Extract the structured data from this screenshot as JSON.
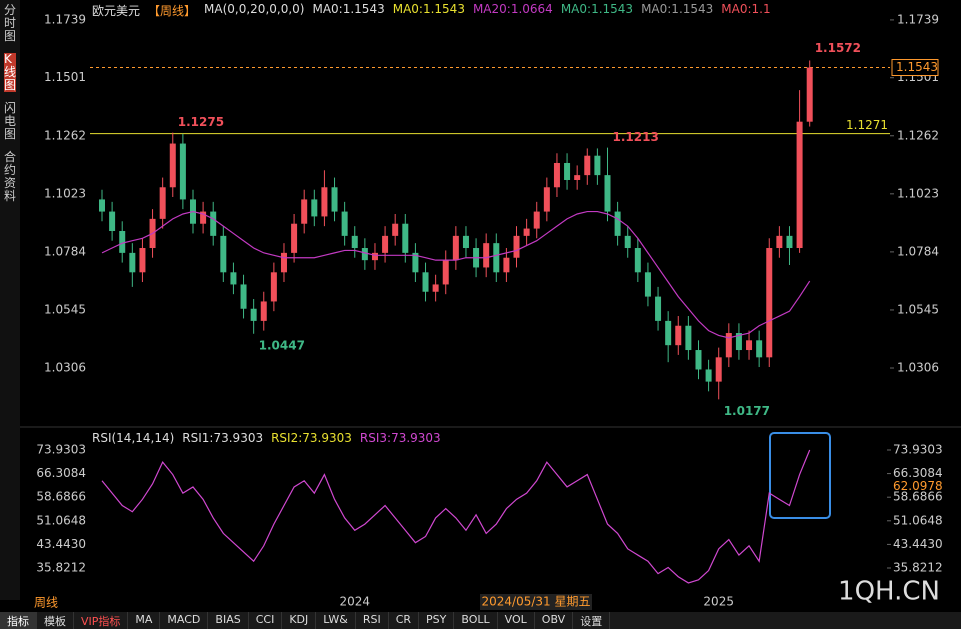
{
  "chart_data": [
    {
      "type": "candlestick",
      "categories": [
        null,
        null,
        null,
        null,
        null,
        null,
        null,
        null,
        null,
        null,
        null,
        null,
        null,
        null,
        null,
        null,
        null,
        null,
        null,
        null,
        null,
        null,
        null,
        null,
        null,
        "2024",
        null,
        null,
        null,
        null,
        null,
        null,
        null,
        null,
        null,
        null,
        null,
        null,
        null,
        null,
        null,
        null,
        null,
        null,
        null,
        null,
        null,
        null,
        null,
        null,
        null,
        null,
        null,
        null,
        null,
        null,
        null,
        null,
        null,
        null,
        null,
        "2025",
        null,
        null,
        null,
        null,
        null,
        null,
        null,
        null,
        null
      ],
      "open": [
        1.1,
        1.095,
        1.087,
        1.078,
        1.07,
        1.08,
        1.092,
        1.105,
        1.123,
        1.1,
        1.09,
        1.095,
        1.085,
        1.07,
        1.065,
        1.055,
        1.05,
        1.058,
        1.07,
        1.078,
        1.09,
        1.1,
        1.093,
        1.105,
        1.095,
        1.085,
        1.08,
        1.075,
        1.078,
        1.085,
        1.09,
        1.078,
        1.07,
        1.062,
        1.065,
        1.075,
        1.085,
        1.08,
        1.072,
        1.082,
        1.07,
        1.076,
        1.085,
        1.088,
        1.095,
        1.105,
        1.115,
        1.108,
        1.11,
        1.118,
        1.11,
        1.095,
        1.085,
        1.08,
        1.07,
        1.06,
        1.05,
        1.04,
        1.048,
        1.038,
        1.03,
        1.025,
        1.035,
        1.045,
        1.038,
        1.042,
        1.035,
        1.08,
        1.085,
        1.08,
        1.132
      ],
      "high": [
        1.104,
        1.099,
        1.091,
        1.082,
        1.084,
        1.096,
        1.109,
        1.1275,
        1.127,
        1.104,
        1.099,
        1.099,
        1.089,
        1.074,
        1.069,
        1.059,
        1.062,
        1.074,
        1.082,
        1.094,
        1.104,
        1.104,
        1.112,
        1.109,
        1.099,
        1.089,
        1.084,
        1.082,
        1.089,
        1.094,
        1.094,
        1.082,
        1.074,
        1.069,
        1.079,
        1.089,
        1.089,
        1.084,
        1.086,
        1.086,
        1.08,
        1.089,
        1.092,
        1.099,
        1.109,
        1.119,
        1.119,
        1.114,
        1.121,
        1.121,
        1.1213,
        1.099,
        1.089,
        1.084,
        1.074,
        1.064,
        1.054,
        1.052,
        1.052,
        1.042,
        1.034,
        1.039,
        1.049,
        1.049,
        1.046,
        1.046,
        1.084,
        1.089,
        1.089,
        1.145,
        1.1572
      ],
      "low": [
        1.091,
        1.083,
        1.074,
        1.064,
        1.066,
        1.076,
        1.088,
        1.101,
        1.096,
        1.086,
        1.086,
        1.081,
        1.066,
        1.061,
        1.051,
        1.0447,
        1.046,
        1.054,
        1.066,
        1.074,
        1.086,
        1.089,
        1.089,
        1.091,
        1.081,
        1.076,
        1.071,
        1.071,
        1.074,
        1.081,
        1.074,
        1.066,
        1.058,
        1.058,
        1.061,
        1.071,
        1.076,
        1.068,
        1.068,
        1.066,
        1.066,
        1.072,
        1.081,
        1.084,
        1.091,
        1.101,
        1.104,
        1.104,
        1.106,
        1.106,
        1.091,
        1.081,
        1.076,
        1.066,
        1.056,
        1.046,
        1.033,
        1.036,
        1.034,
        1.026,
        1.021,
        1.0177,
        1.031,
        1.034,
        1.034,
        1.031,
        1.031,
        1.076,
        1.073,
        1.078,
        1.13
      ],
      "close": [
        1.095,
        1.087,
        1.078,
        1.07,
        1.08,
        1.092,
        1.105,
        1.123,
        1.1,
        1.09,
        1.095,
        1.085,
        1.07,
        1.065,
        1.055,
        1.05,
        1.058,
        1.07,
        1.078,
        1.09,
        1.1,
        1.093,
        1.105,
        1.095,
        1.085,
        1.08,
        1.075,
        1.078,
        1.085,
        1.09,
        1.078,
        1.07,
        1.062,
        1.065,
        1.075,
        1.085,
        1.08,
        1.072,
        1.082,
        1.07,
        1.076,
        1.085,
        1.088,
        1.095,
        1.105,
        1.115,
        1.108,
        1.11,
        1.118,
        1.11,
        1.095,
        1.085,
        1.08,
        1.07,
        1.06,
        1.05,
        1.04,
        1.048,
        1.038,
        1.03,
        1.025,
        1.035,
        1.045,
        1.038,
        1.042,
        1.035,
        1.08,
        1.085,
        1.08,
        1.132,
        1.1543
      ],
      "up_color": "#f0505a",
      "down_color": "#3fb886",
      "series": [
        {
          "name": "MA20",
          "color": "#c23ac2",
          "values": [
            1.078,
            1.08,
            1.082,
            1.083,
            1.084,
            1.086,
            1.089,
            1.092,
            1.094,
            1.095,
            1.094,
            1.092,
            1.089,
            1.086,
            1.083,
            1.08,
            1.078,
            1.077,
            1.076,
            1.076,
            1.076,
            1.076,
            1.077,
            1.078,
            1.079,
            1.079,
            1.078,
            1.077,
            1.077,
            1.077,
            1.077,
            1.077,
            1.076,
            1.075,
            1.075,
            1.075,
            1.076,
            1.076,
            1.076,
            1.077,
            1.078,
            1.079,
            1.081,
            1.083,
            1.086,
            1.089,
            1.092,
            1.094,
            1.095,
            1.095,
            1.094,
            1.092,
            1.089,
            1.084,
            1.078,
            1.072,
            1.066,
            1.06,
            1.055,
            1.05,
            1.046,
            1.044,
            1.043,
            1.044,
            1.045,
            1.048,
            1.05,
            1.052,
            1.054,
            1.06,
            1.0664
          ]
        }
      ],
      "ylim": [
        1.0092,
        1.1788
      ],
      "yticks": [
        1.1739,
        1.1501,
        1.1262,
        1.1023,
        1.0784,
        1.0545,
        1.0306
      ],
      "grid": false,
      "hlines": [
        {
          "value": 1.1543,
          "color": "#ff9a2e",
          "dashed": true
        },
        {
          "value": 1.1271,
          "color": "#e8e030",
          "dashed": false
        }
      ]
    },
    {
      "type": "line",
      "series": [
        {
          "name": "RSI1",
          "color": "#d048d0",
          "values": [
            64,
            60,
            56,
            54,
            58,
            63,
            70,
            66,
            60,
            62,
            58,
            52,
            47,
            44,
            41,
            38,
            43,
            50,
            56,
            62,
            64,
            60,
            66,
            58,
            52,
            48,
            50,
            53,
            56,
            52,
            48,
            44,
            46,
            52,
            55,
            52,
            48,
            53,
            47,
            50,
            55,
            58,
            60,
            64,
            70,
            66,
            62,
            64,
            66,
            58,
            50,
            47,
            42,
            40,
            38,
            34,
            36,
            33,
            31,
            32,
            35,
            42,
            45,
            40,
            43,
            38,
            60,
            58,
            56,
            66,
            73.9303
          ]
        }
      ],
      "ylim": [
        27.1,
        77.16
      ],
      "yticks": [
        {
          "value": 73.9303,
          "label": "73.9303"
        },
        {
          "value": 66.3084,
          "label": "66.3084"
        },
        {
          "value": 58.6866,
          "label": "58.6866"
        },
        {
          "value": 51.0648,
          "label": "51.0648"
        },
        {
          "value": 43.443,
          "label": "43.4430"
        },
        {
          "value": 35.8212,
          "label": "35.8212"
        }
      ],
      "grid": false,
      "cursor_value": 62.0978
    }
  ],
  "ui": {
    "header": [
      {
        "text": "欧元美元",
        "color": "#ddd"
      },
      {
        "text": "【周线】",
        "color": "#ff9a2e"
      },
      {
        "text": "MA(0,0,20,0,0,0)",
        "color": "#ddd"
      },
      {
        "text": "MA0:1.1543",
        "color": "#ddd"
      },
      {
        "text": "MA0:1.1543",
        "color": "#e8e030"
      },
      {
        "text": "MA20:1.0664",
        "color": "#c23ac2"
      },
      {
        "text": "MA0:1.1543",
        "color": "#3fb886"
      },
      {
        "text": "MA0:1.1543",
        "color": "#999"
      },
      {
        "text": "MA0:1.1",
        "color": "#f0505a"
      }
    ],
    "rsi_header": [
      {
        "text": "RSI(14,14,14)",
        "color": "#ddd"
      },
      {
        "text": "RSI1:73.9303",
        "color": "#ddd"
      },
      {
        "text": "RSI2:73.9303",
        "color": "#e8e030"
      },
      {
        "text": "RSI3:73.9303",
        "color": "#d048d0"
      }
    ],
    "sidebar": [
      "分时图",
      "K线图",
      "闪电图",
      "合约资料"
    ],
    "period": "周线",
    "cursor_date": "2024/05/31 星期五",
    "watermark": "1QH.CN",
    "tabs": [
      "指标",
      "模板",
      "VIP指标",
      "MA",
      "MACD",
      "BIAS",
      "CCI",
      "KDJ",
      "LW&",
      "RSI",
      "CR",
      "PSY",
      "BOLL",
      "VOL",
      "OBV",
      "设置"
    ]
  }
}
